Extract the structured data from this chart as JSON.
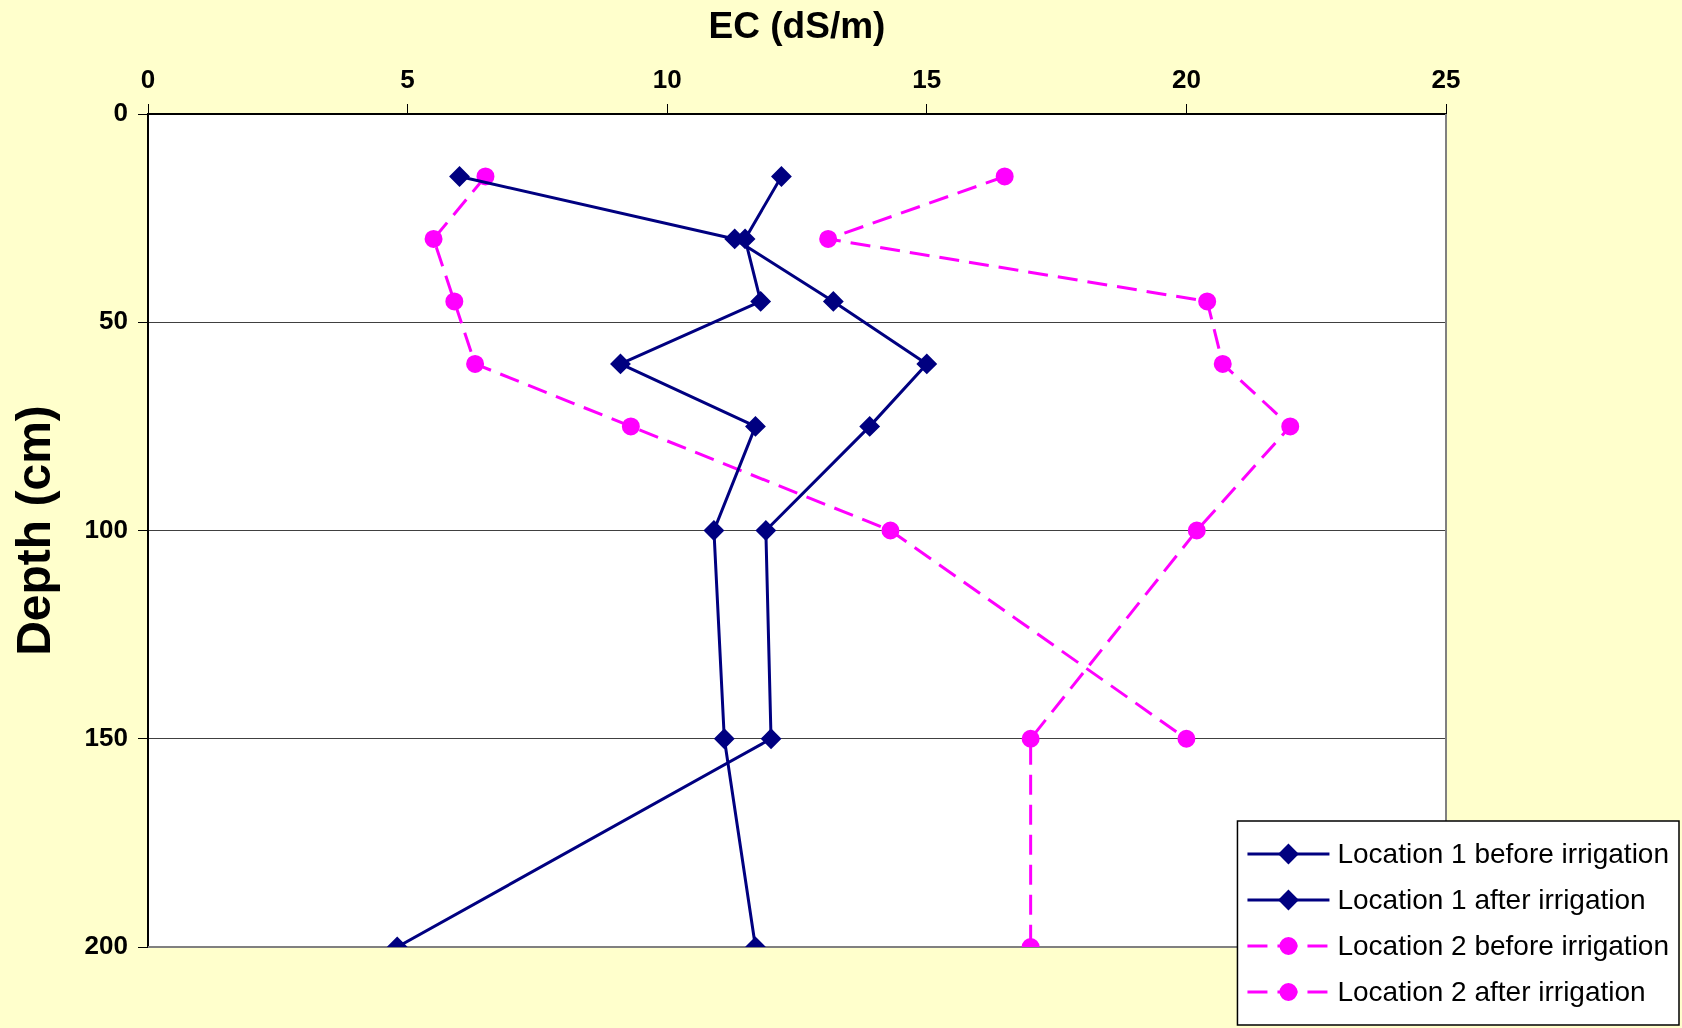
{
  "chart_data": {
    "type": "line",
    "xlabel": "EC (dS/m)",
    "ylabel": "Depth (cm)",
    "xlim": [
      0,
      25
    ],
    "xticks": [
      0,
      5,
      10,
      15,
      20,
      25
    ],
    "ylim": [
      200,
      0
    ],
    "yticks": [
      0,
      50,
      100,
      150,
      200
    ],
    "grid": "y",
    "legend": "bottom right",
    "series": [
      {
        "name": "Location 1 before irrigation",
        "color": "#000080",
        "marker": "diamond",
        "line_style": "solid",
        "x": [
          12.2,
          11.5,
          11.8,
          9.1,
          11.7,
          10.9,
          11.1,
          11.7
        ],
        "values": [
          15,
          30,
          45,
          60,
          75,
          100,
          150,
          200
        ]
      },
      {
        "name": "Location 1 after irrigation",
        "color": "#000080",
        "marker": "diamond",
        "line_style": "solid",
        "x": [
          6.0,
          11.3,
          13.2,
          15.0,
          13.9,
          11.9,
          12.0,
          4.8
        ],
        "values": [
          15,
          30,
          45,
          60,
          75,
          100,
          150,
          200
        ]
      },
      {
        "name": "Location 2 before irrigation",
        "color": "#ff00ff",
        "marker": "circle",
        "line_style": "dashed",
        "x": [
          16.5,
          13.1,
          20.4,
          20.7,
          22.0,
          20.2,
          17.0,
          17.0
        ],
        "values": [
          15,
          30,
          45,
          60,
          75,
          100,
          150,
          200
        ]
      },
      {
        "name": "Location 2 after irrigation",
        "color": "#ff00ff",
        "marker": "circle",
        "line_style": "dashed",
        "x": [
          6.5,
          5.5,
          5.9,
          6.3,
          9.3,
          14.3,
          20.0
        ],
        "values": [
          15,
          30,
          45,
          60,
          75,
          100,
          150
        ]
      }
    ]
  }
}
